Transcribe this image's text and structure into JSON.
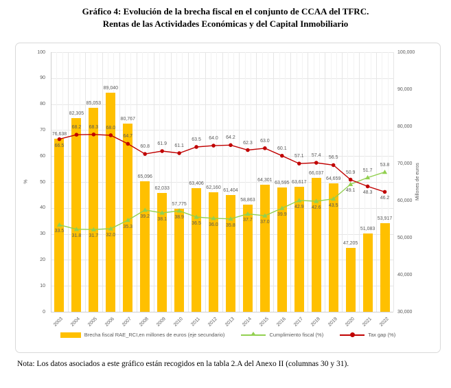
{
  "title": {
    "line1": "Gráfico 4: Evolución de la brecha fiscal en el conjunto de CCAA del TFRC.",
    "line2": "Rentas de las Actividades Económicas y del Capital Inmobiliario"
  },
  "note": "Nota: Los datos asociados a este gráfico están recogidos en la tabla 2.A del Anexo II (columnas 30 y 31).",
  "chart_data": {
    "type": "combo-bar-line",
    "categories": [
      "2003",
      "2004",
      "2005",
      "2006",
      "2007",
      "2008",
      "2009",
      "2010",
      "2011",
      "2012",
      "2013",
      "2014",
      "2015",
      "2016",
      "2017",
      "2018",
      "2019",
      "2020",
      "2021",
      "2022"
    ],
    "series": [
      {
        "name": "Brecha fiscal RAE_RCI,en millones de euros (eje secundario)",
        "type": "bar",
        "axis": "secondary",
        "color": "#FFC000",
        "values": [
          76638,
          82305,
          85053,
          89040,
          80767,
          65096,
          62033,
          57775,
          63406,
          62160,
          61404,
          58863,
          64301,
          63595,
          63617,
          66037,
          64659,
          47205,
          51083,
          53917
        ]
      },
      {
        "name": "Cumplimiento fiscal (%)",
        "type": "line",
        "axis": "primary",
        "color": "#92D050",
        "marker": "triangle",
        "label_side": "below",
        "label_side_exceptions": {
          "2021": "above",
          "2022": "above"
        },
        "values": [
          33.5,
          31.8,
          31.7,
          32.0,
          35.3,
          39.2,
          38.1,
          38.9,
          36.5,
          36.0,
          35.8,
          37.7,
          37.0,
          39.9,
          42.9,
          42.6,
          43.5,
          49.1,
          51.7,
          53.8
        ]
      },
      {
        "name": "Tax gap (%)",
        "type": "line",
        "axis": "primary",
        "color": "#C00000",
        "marker": "circle",
        "label_side": "above",
        "label_side_exceptions": {
          "2003": "below",
          "2021": "below",
          "2022": "below"
        },
        "values": [
          66.5,
          68.2,
          68.3,
          68.0,
          64.7,
          60.8,
          61.9,
          61.1,
          63.5,
          64.0,
          64.2,
          62.3,
          63.0,
          60.1,
          57.1,
          57.4,
          56.5,
          50.9,
          48.3,
          46.2
        ]
      }
    ],
    "primary_axis": {
      "title": "%",
      "min": 0,
      "max": 100,
      "step": 10
    },
    "secondary_axis": {
      "title": "Millones de euros",
      "min": 30000,
      "max": 100000,
      "step": 10000
    },
    "grid": true,
    "legend_position": "bottom"
  }
}
